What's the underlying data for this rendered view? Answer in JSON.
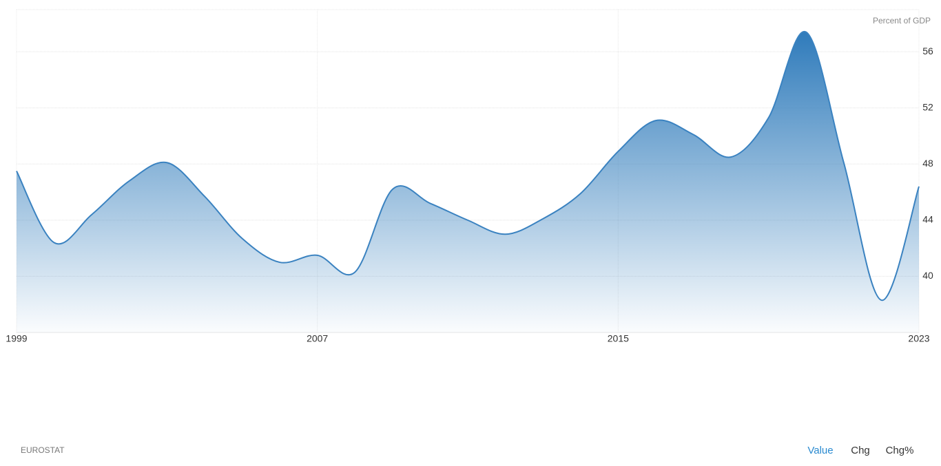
{
  "chart_data": {
    "type": "area",
    "y_label": "Percent of GDP",
    "source": "EUROSTAT",
    "x": [
      1999,
      2000,
      2001,
      2002,
      2003,
      2004,
      2005,
      2006,
      2007,
      2008,
      2009,
      2010,
      2011,
      2012,
      2013,
      2014,
      2015,
      2016,
      2017,
      2018,
      2019,
      2020,
      2021,
      2022,
      2023
    ],
    "series": [
      {
        "color": "#3a82c0",
        "values": [
          47.5,
          42.4,
          44.4,
          46.8,
          48.1,
          45.7,
          42.7,
          41.0,
          41.5,
          40.3,
          46.2,
          45.2,
          44.0,
          43.0,
          44.1,
          45.9,
          48.9,
          51.1,
          50.1,
          48.5,
          51.3,
          57.4,
          48.1,
          38.3,
          46.4
        ]
      }
    ],
    "xlim": [
      1999,
      2023
    ],
    "xticks": [
      1999,
      2007,
      2015,
      2023
    ],
    "ylim": [
      36,
      59
    ],
    "yticks": [
      40,
      44,
      48,
      52,
      56
    ],
    "grid": true
  },
  "controls": [
    "Value",
    "Chg",
    "Chg%"
  ]
}
